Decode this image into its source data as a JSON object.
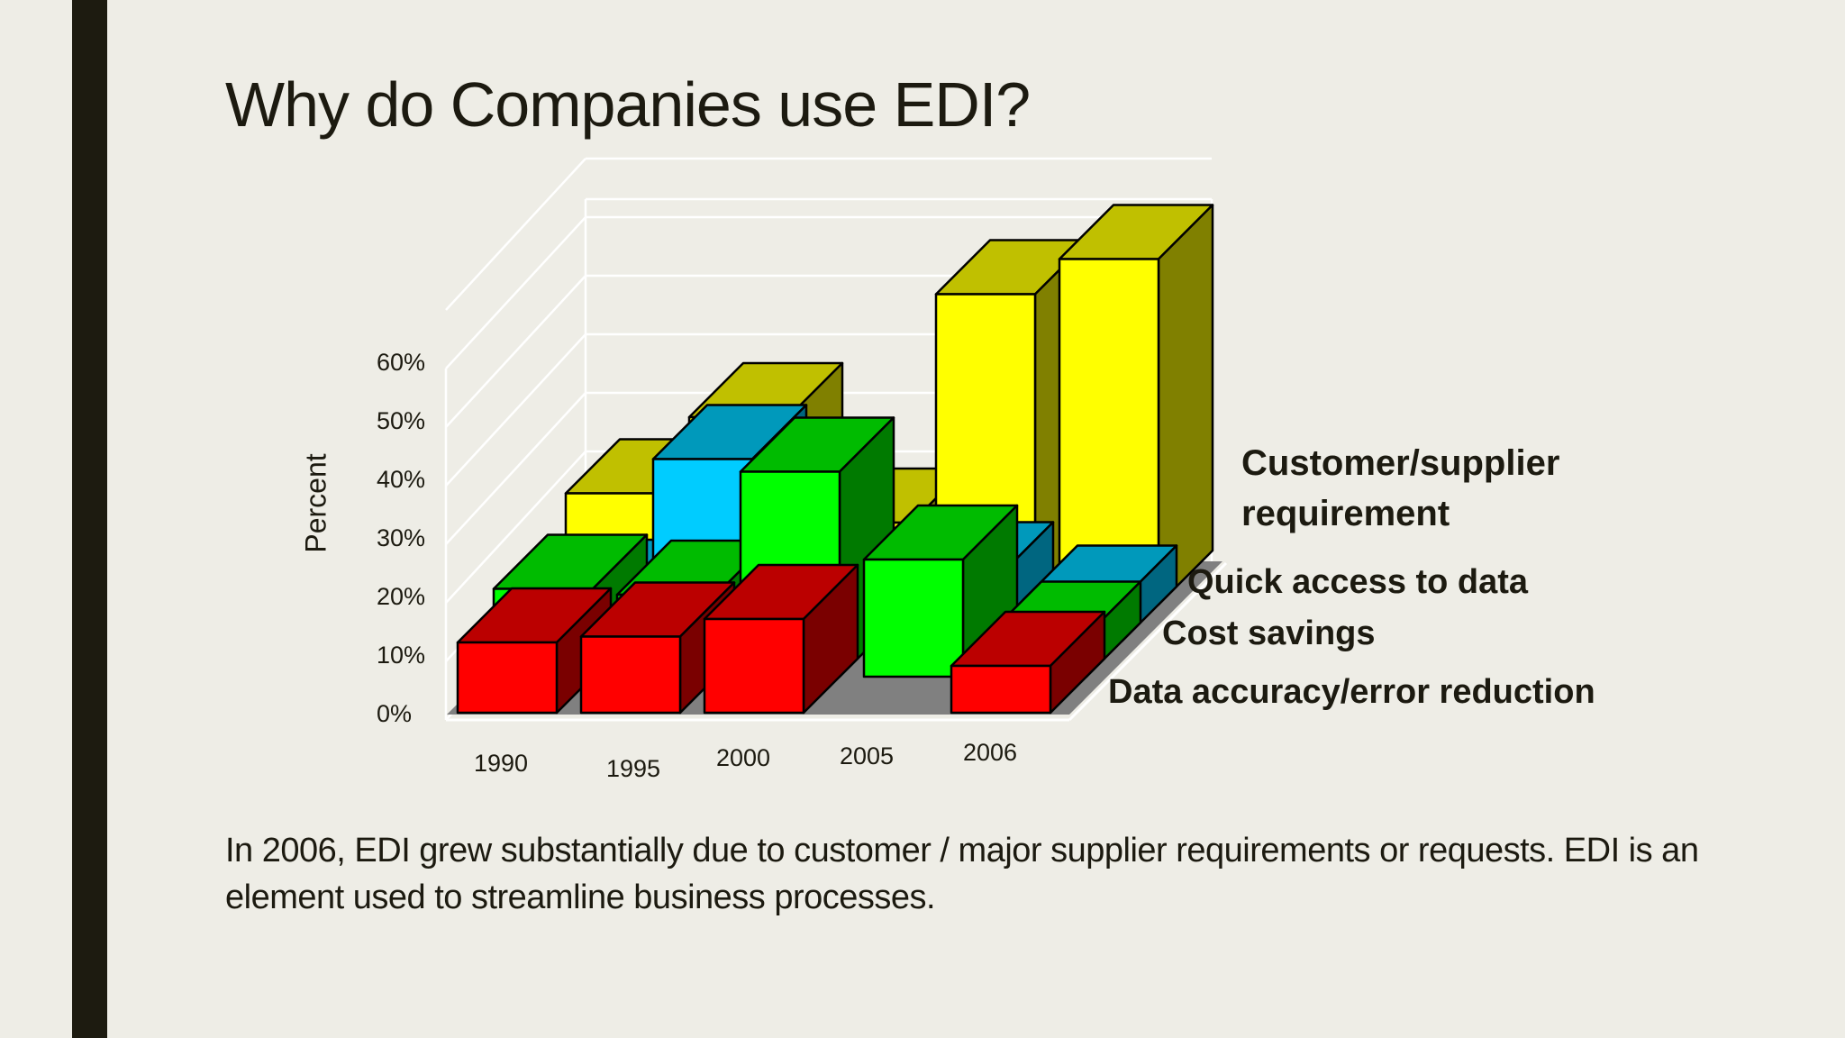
{
  "slide": {
    "title": "Why do Companies use EDI?",
    "body": "In 2006, EDI grew substantially due to customer / major supplier requirements or requests.  EDI is an element used to streamline business processes.",
    "colors": {
      "background": "#eeede6",
      "accent_bar": "#1d1b10",
      "text": "#1c1a10"
    }
  },
  "chart_data": {
    "type": "bar",
    "variant": "3d-clustered-depth",
    "title": "",
    "xlabel": "",
    "ylabel": "Percent",
    "ylim": [
      0,
      60
    ],
    "yticks": [
      "0%",
      "10%",
      "20%",
      "30%",
      "40%",
      "50%",
      "60%"
    ],
    "grid": true,
    "legend_position": "right (series labels along depth axis)",
    "categories": [
      "1990",
      "1995",
      "2000",
      "2005",
      "2006"
    ],
    "series": [
      {
        "name": "Data accuracy/error reduction",
        "color": "#ff0000",
        "top": "#bb0000",
        "side": "#7a0000",
        "values": [
          12,
          13,
          16,
          0,
          8
        ]
      },
      {
        "name": "Cost savings",
        "color": "#00ff00",
        "top": "#00bb00",
        "side": "#007a00",
        "values": [
          15,
          14,
          35,
          20,
          7
        ]
      },
      {
        "name": "Quick access to data",
        "color": "#00ccff",
        "top": "#0099bb",
        "side": "#006680",
        "values": [
          8,
          31,
          10,
          11,
          7
        ]
      },
      {
        "name": "Customer/supplier requirement",
        "color": "#ffff00",
        "top": "#c0c000",
        "side": "#808000",
        "values": [
          19,
          32,
          14,
          53,
          59
        ]
      }
    ]
  },
  "labels": {
    "series_display": [
      {
        "line1": "Customer/supplier",
        "line2": "requirement"
      },
      {
        "line1": "Quick access to data"
      },
      {
        "line1": "Cost savings"
      },
      {
        "line1": "Data accuracy/error reduction"
      }
    ]
  }
}
